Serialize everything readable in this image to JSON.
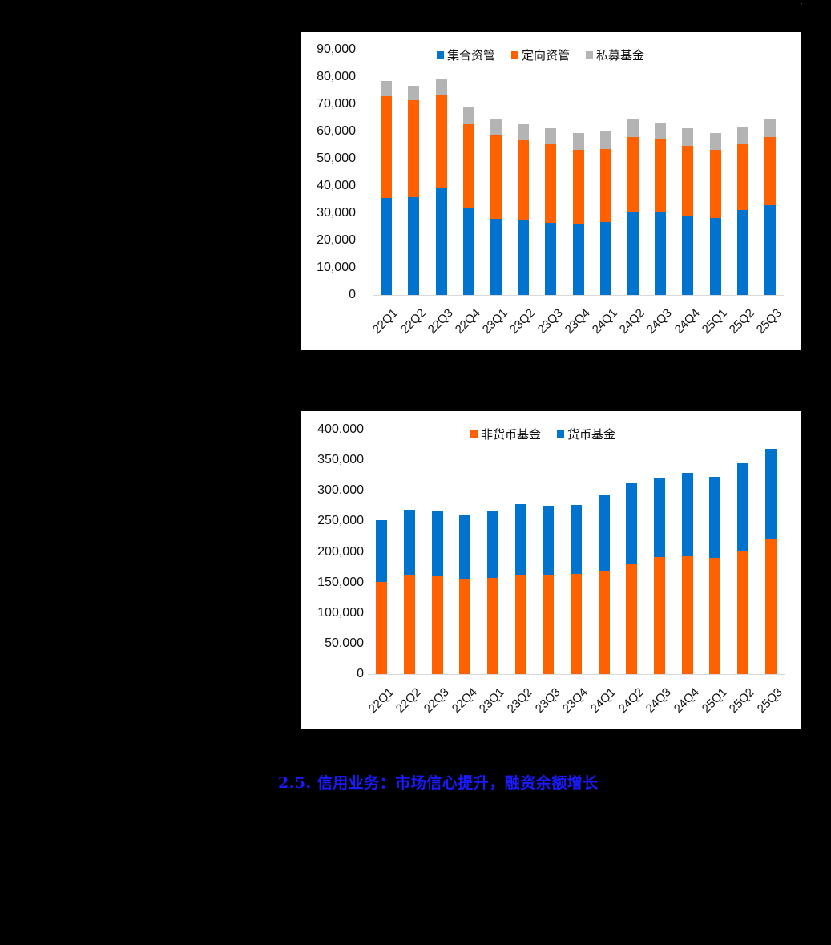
{
  "page": {
    "background": "#000000",
    "section_heading": "2.5.  信用业务：市场信心提升，融资余额增长",
    "section_heading_color": "#1a1aff"
  },
  "colors": {
    "blue": "#0073cf",
    "orange": "#ff6000",
    "gray": "#b4b4b4"
  },
  "chart_data": [
    {
      "type": "bar",
      "stacked": true,
      "title": "",
      "xlabel": "",
      "ylabel": "",
      "ylim": [
        0,
        90000
      ],
      "yticks": [
        "90,000",
        "80,000",
        "70,000",
        "60,000",
        "50,000",
        "40,000",
        "30,000",
        "20,000",
        "10,000",
        "0"
      ],
      "grid": false,
      "legend_position": "top",
      "categories": [
        "22Q1",
        "22Q2",
        "22Q3",
        "22Q4",
        "23Q1",
        "23Q2",
        "23Q3",
        "23Q4",
        "24Q1",
        "24Q2",
        "24Q3",
        "24Q4",
        "25Q1",
        "25Q2",
        "25Q3"
      ],
      "series": [
        {
          "name": "集合资管",
          "color": "#0073cf",
          "values": [
            35700,
            36000,
            39500,
            32000,
            28000,
            27300,
            26600,
            26100,
            26900,
            30600,
            30700,
            29000,
            28300,
            31100,
            32900
          ]
        },
        {
          "name": "定向资管",
          "color": "#ff6000",
          "values": [
            37200,
            35400,
            33700,
            30600,
            30800,
            29500,
            28700,
            27100,
            26600,
            27300,
            26400,
            25700,
            24900,
            24200,
            25000
          ]
        },
        {
          "name": "私募基金",
          "color": "#b4b4b4",
          "values": [
            5600,
            5400,
            5900,
            6200,
            5900,
            5800,
            5900,
            6200,
            6500,
            6500,
            6100,
            6500,
            6200,
            6200,
            6500
          ]
        }
      ]
    },
    {
      "type": "bar",
      "stacked": true,
      "title": "",
      "xlabel": "",
      "ylabel": "",
      "ylim": [
        0,
        400000
      ],
      "yticks": [
        "400,000",
        "350,000",
        "300,000",
        "250,000",
        "200,000",
        "150,000",
        "100,000",
        "50,000",
        "0"
      ],
      "grid": false,
      "legend_position": "top",
      "categories": [
        "22Q1",
        "22Q2",
        "22Q3",
        "22Q4",
        "23Q1",
        "23Q2",
        "23Q3",
        "23Q4",
        "24Q1",
        "24Q2",
        "24Q3",
        "24Q4",
        "25Q1",
        "25Q2",
        "25Q3"
      ],
      "series": [
        {
          "name": "非货币基金",
          "color": "#ff6000",
          "values": [
            150800,
            162200,
            159600,
            156100,
            157800,
            162200,
            160900,
            163500,
            167500,
            179300,
            191100,
            192800,
            189800,
            202000,
            221200
          ]
        },
        {
          "name": "货币基金",
          "color": "#0073cf",
          "values": [
            101000,
            106200,
            106600,
            104900,
            109300,
            115400,
            114500,
            112800,
            125000,
            132400,
            130200,
            136000,
            133200,
            142500,
            147300
          ]
        }
      ]
    }
  ]
}
